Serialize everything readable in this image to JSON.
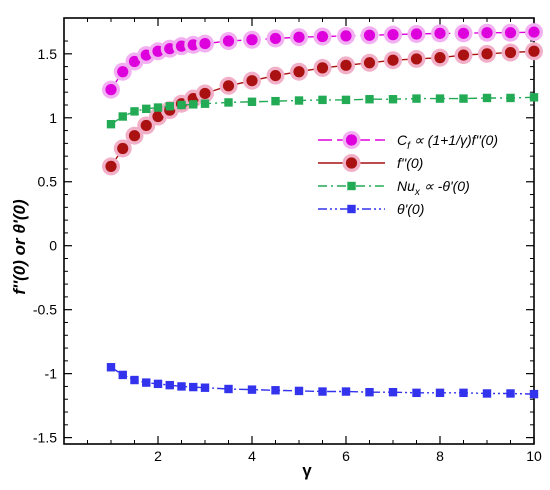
{
  "chart_data": {
    "type": "line",
    "xlabel": "γ",
    "ylabel": "f''(0) or θ'(0)",
    "xlim": [
      0,
      10
    ],
    "ylim": [
      -1.55,
      1.78
    ],
    "xticks": [
      2,
      4,
      6,
      8,
      10
    ],
    "xtick_labels": [
      "2",
      "4",
      "6",
      "8",
      "10"
    ],
    "yticks": [
      -1.5,
      -1,
      -0.5,
      0,
      0.5,
      1,
      1.5
    ],
    "ytick_labels": [
      "-1.5",
      "-1",
      "-0.5",
      "0",
      "0.5",
      "1",
      "1.5"
    ],
    "grid": false,
    "legend_position": "right-center",
    "series": [
      {
        "name": "C_f ∝ (1+1/γ)f''(0)",
        "legend": {
          "main": "C",
          "sub": "f",
          "rest": " ∝ (1+1/γ)f''(0)"
        },
        "color": "#dd00dd",
        "halo": "#f2b0f2",
        "marker": "circle",
        "line_style": "long-dash",
        "x": [
          1,
          1.25,
          1.5,
          1.75,
          2,
          2.25,
          2.5,
          2.75,
          3,
          3.5,
          4,
          4.5,
          5,
          5.5,
          6,
          6.5,
          7,
          7.5,
          8,
          8.5,
          9,
          9.5,
          10
        ],
        "y": [
          1.22,
          1.36,
          1.44,
          1.49,
          1.52,
          1.54,
          1.56,
          1.57,
          1.58,
          1.6,
          1.61,
          1.62,
          1.63,
          1.635,
          1.64,
          1.645,
          1.65,
          1.655,
          1.66,
          1.66,
          1.665,
          1.665,
          1.67
        ]
      },
      {
        "name": "f''(0)",
        "legend": {
          "main": "f''(0)",
          "sub": "",
          "rest": ""
        },
        "color": "#aa1111",
        "halo": "#f2b0c8",
        "marker": "circle",
        "line_style": "solid",
        "x": [
          1,
          1.25,
          1.5,
          1.75,
          2,
          2.25,
          2.5,
          2.75,
          3,
          3.5,
          4,
          4.5,
          5,
          5.5,
          6,
          6.5,
          7,
          7.5,
          8,
          8.5,
          9,
          9.5,
          10
        ],
        "y": [
          0.62,
          0.76,
          0.86,
          0.94,
          1.01,
          1.06,
          1.11,
          1.15,
          1.19,
          1.25,
          1.29,
          1.33,
          1.36,
          1.39,
          1.41,
          1.43,
          1.45,
          1.46,
          1.47,
          1.49,
          1.5,
          1.51,
          1.52
        ]
      },
      {
        "name": "Nu_x ∝ -θ'(0)",
        "legend": {
          "main": "Nu",
          "sub": "x",
          "rest": " ∝ -θ'(0)"
        },
        "color": "#22aa55",
        "halo": null,
        "marker": "square",
        "line_style": "dash-dot",
        "x": [
          1,
          1.25,
          1.5,
          1.75,
          2,
          2.25,
          2.5,
          2.75,
          3,
          3.5,
          4,
          4.5,
          5,
          5.5,
          6,
          6.5,
          7,
          7.5,
          8,
          8.5,
          9,
          9.5,
          10
        ],
        "y": [
          0.95,
          1.01,
          1.05,
          1.07,
          1.08,
          1.09,
          1.1,
          1.105,
          1.11,
          1.12,
          1.125,
          1.13,
          1.135,
          1.14,
          1.14,
          1.145,
          1.145,
          1.15,
          1.15,
          1.15,
          1.155,
          1.155,
          1.16
        ]
      },
      {
        "name": "θ'(0)",
        "legend": {
          "main": "θ'(0)",
          "sub": "",
          "rest": ""
        },
        "color": "#3333ee",
        "halo": null,
        "marker": "square",
        "line_style": "dash-dot-dot",
        "x": [
          1,
          1.25,
          1.5,
          1.75,
          2,
          2.25,
          2.5,
          2.75,
          3,
          3.5,
          4,
          4.5,
          5,
          5.5,
          6,
          6.5,
          7,
          7.5,
          8,
          8.5,
          9,
          9.5,
          10
        ],
        "y": [
          -0.95,
          -1.01,
          -1.05,
          -1.07,
          -1.08,
          -1.09,
          -1.1,
          -1.105,
          -1.11,
          -1.12,
          -1.125,
          -1.13,
          -1.135,
          -1.14,
          -1.14,
          -1.145,
          -1.145,
          -1.15,
          -1.15,
          -1.15,
          -1.155,
          -1.155,
          -1.16
        ]
      }
    ]
  }
}
